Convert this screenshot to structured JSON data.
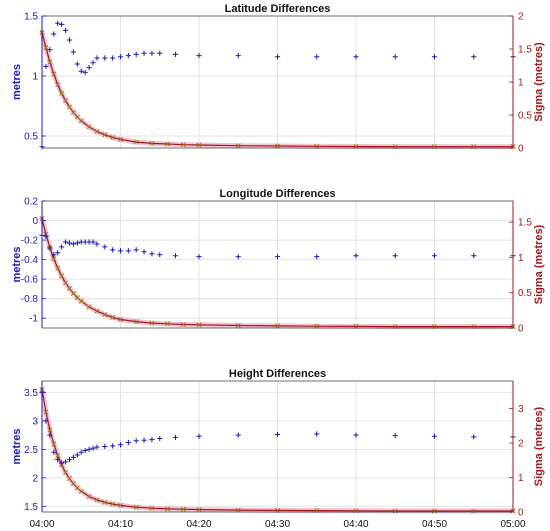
{
  "chart_data": [
    {
      "type": "scatter",
      "title": "Latitude Differences",
      "ylabel": "metres",
      "y2label": "Sigma (metres)",
      "ylim": [
        0.4,
        1.5
      ],
      "y2lim": [
        0,
        2
      ],
      "yticks": [
        "0.5",
        "1",
        "1.5"
      ],
      "y2ticks": [
        "0",
        "0.5",
        "1",
        "1.5",
        "2"
      ],
      "grid": true,
      "series": [
        {
          "axis": "left",
          "marker": "plus",
          "color": "#1a1ab8",
          "x": [
            0,
            0.5,
            1,
            1.5,
            2,
            2.5,
            3,
            3.5,
            4,
            4.5,
            5,
            5.5,
            6,
            6.5,
            7,
            8,
            9,
            10,
            11,
            12,
            13,
            14,
            15,
            17,
            20,
            25,
            30,
            35,
            40,
            45,
            50,
            55,
            60
          ],
          "y": [
            0.41,
            1.08,
            1.22,
            1.35,
            1.44,
            1.43,
            1.38,
            1.3,
            1.2,
            1.1,
            1.04,
            1.03,
            1.07,
            1.11,
            1.15,
            1.15,
            1.15,
            1.16,
            1.17,
            1.18,
            1.19,
            1.19,
            1.19,
            1.18,
            1.17,
            1.17,
            1.16,
            1.16,
            1.16,
            1.16,
            1.16,
            1.16,
            1.16
          ]
        },
        {
          "axis": "right",
          "marker": "cross",
          "color": "#a01818",
          "x": [
            0,
            0.5,
            1,
            1.5,
            2,
            2.5,
            3,
            3.5,
            4,
            4.5,
            5,
            6,
            7,
            8,
            9,
            10,
            12,
            14,
            16,
            18,
            20,
            25,
            30,
            35,
            40,
            45,
            50,
            55,
            60
          ],
          "y": [
            1.75,
            1.52,
            1.3,
            1.12,
            0.96,
            0.83,
            0.72,
            0.62,
            0.54,
            0.47,
            0.41,
            0.32,
            0.25,
            0.2,
            0.16,
            0.13,
            0.09,
            0.07,
            0.06,
            0.05,
            0.045,
            0.035,
            0.03,
            0.025,
            0.022,
            0.02,
            0.02,
            0.02,
            0.02
          ]
        }
      ]
    },
    {
      "type": "scatter",
      "title": "Longitude Differences",
      "ylabel": "metres",
      "y2label": "Sigma (metres)",
      "ylim": [
        -1.1,
        0.2
      ],
      "y2lim": [
        0,
        1.8
      ],
      "yticks": [
        "-1",
        "-0.8",
        "-0.6",
        "-0.4",
        "-0.2",
        "0",
        "0.2"
      ],
      "y2ticks": [
        "0",
        "0.5",
        "1",
        "1.5"
      ],
      "grid": true,
      "series": [
        {
          "axis": "left",
          "marker": "plus",
          "color": "#1a1ab8",
          "x": [
            0,
            0.5,
            1,
            1.5,
            2,
            2.5,
            3,
            3.5,
            4,
            4.5,
            5,
            5.5,
            6,
            6.5,
            7,
            8,
            9,
            10,
            11,
            12,
            13,
            14,
            15,
            17,
            20,
            25,
            30,
            35,
            40,
            45,
            50,
            55,
            60
          ],
          "y": [
            -0.15,
            -0.16,
            -0.28,
            -0.35,
            -0.33,
            -0.27,
            -0.22,
            -0.23,
            -0.24,
            -0.23,
            -0.22,
            -0.22,
            -0.22,
            -0.22,
            -0.24,
            -0.27,
            -0.3,
            -0.31,
            -0.31,
            -0.3,
            -0.32,
            -0.34,
            -0.35,
            -0.36,
            -0.37,
            -0.37,
            -0.37,
            -0.37,
            -0.36,
            -0.36,
            -0.36,
            -0.36,
            -0.36
          ]
        },
        {
          "axis": "right",
          "marker": "cross",
          "color": "#a01818",
          "x": [
            0,
            0.5,
            1,
            1.5,
            2,
            2.5,
            3,
            3.5,
            4,
            4.5,
            5,
            6,
            7,
            8,
            9,
            10,
            12,
            14,
            16,
            18,
            20,
            25,
            30,
            35,
            40,
            45,
            50,
            55,
            60
          ],
          "y": [
            1.55,
            1.33,
            1.14,
            0.98,
            0.85,
            0.74,
            0.64,
            0.56,
            0.49,
            0.43,
            0.38,
            0.3,
            0.24,
            0.19,
            0.15,
            0.12,
            0.09,
            0.07,
            0.06,
            0.05,
            0.045,
            0.035,
            0.03,
            0.025,
            0.022,
            0.02,
            0.02,
            0.02,
            0.02
          ]
        }
      ]
    },
    {
      "type": "scatter",
      "title": "Height Differences",
      "ylabel": "metres",
      "y2label": "Sigma (metres)",
      "ylim": [
        1.4,
        3.7
      ],
      "y2lim": [
        0,
        3.8
      ],
      "yticks": [
        "1.5",
        "2",
        "2.5",
        "3",
        "3.5"
      ],
      "y2ticks": [
        "0",
        "1",
        "2",
        "3"
      ],
      "grid": true,
      "series": [
        {
          "axis": "left",
          "marker": "plus",
          "color": "#1a1ab8",
          "x": [
            0,
            0.5,
            1,
            1.5,
            2,
            2.5,
            3,
            3.5,
            4,
            4.5,
            5,
            5.5,
            6,
            6.5,
            7,
            8,
            9,
            10,
            11,
            12,
            13,
            14,
            15,
            17,
            20,
            25,
            30,
            35,
            40,
            45,
            50,
            55,
            60
          ],
          "y": [
            3.5,
            3.0,
            2.75,
            2.45,
            2.32,
            2.26,
            2.28,
            2.32,
            2.36,
            2.4,
            2.45,
            2.48,
            2.5,
            2.52,
            2.54,
            2.55,
            2.56,
            2.58,
            2.62,
            2.65,
            2.66,
            2.67,
            2.69,
            2.71,
            2.73,
            2.75,
            2.76,
            2.77,
            2.75,
            2.74,
            2.73,
            2.72,
            2.72
          ]
        },
        {
          "axis": "right",
          "marker": "cross",
          "color": "#a01818",
          "x": [
            0,
            0.5,
            1,
            1.5,
            2,
            2.5,
            3,
            3.5,
            4,
            4.5,
            5,
            6,
            7,
            8,
            9,
            10,
            12,
            14,
            16,
            18,
            20,
            25,
            30,
            35,
            40,
            45,
            50,
            55,
            60
          ],
          "y": [
            3.55,
            2.9,
            2.38,
            1.97,
            1.64,
            1.37,
            1.15,
            0.97,
            0.82,
            0.7,
            0.6,
            0.45,
            0.35,
            0.28,
            0.23,
            0.19,
            0.14,
            0.11,
            0.09,
            0.08,
            0.07,
            0.055,
            0.045,
            0.04,
            0.035,
            0.03,
            0.03,
            0.03,
            0.03
          ]
        }
      ]
    }
  ],
  "xaxis": {
    "range": [
      0,
      60
    ],
    "ticks": [
      {
        "v": 0,
        "label": "04:00"
      },
      {
        "v": 10,
        "label": "04:10"
      },
      {
        "v": 20,
        "label": "04:20"
      },
      {
        "v": 30,
        "label": "04:30"
      },
      {
        "v": 40,
        "label": "04:40"
      },
      {
        "v": 50,
        "label": "04:50"
      },
      {
        "v": 60,
        "label": "05:00"
      }
    ]
  },
  "colors": {
    "left_axis": "#1a1ab8",
    "right_axis": "#a01818",
    "marker_outline": "#f4a6c4",
    "grid": "#e2e2e2"
  }
}
